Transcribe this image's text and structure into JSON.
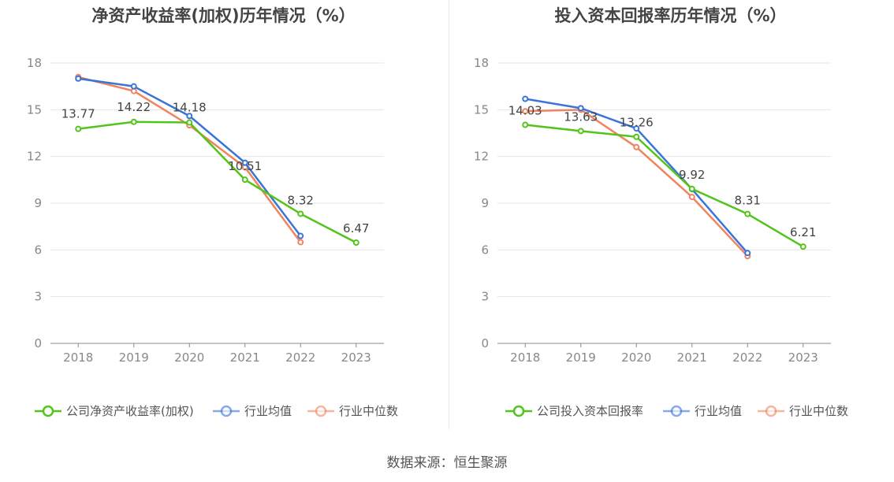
{
  "footer": {
    "source": "数据来源：恒生聚源"
  },
  "colors": {
    "company": "#52c41a",
    "avg": "#3a74d8",
    "median": "#f0845e"
  },
  "chart_data": [
    {
      "type": "line",
      "title": "净资产收益率(加权)历年情况（%）",
      "categories": [
        "2018",
        "2019",
        "2020",
        "2021",
        "2022",
        "2023"
      ],
      "ylim": [
        0,
        18
      ],
      "yticks": [
        0,
        3,
        6,
        9,
        12,
        15,
        18
      ],
      "grid": true,
      "legend_position": "bottom",
      "series": [
        {
          "name": "公司净资产收益率(加权)",
          "key": "company",
          "values": [
            13.77,
            14.22,
            14.18,
            10.51,
            8.32,
            6.47
          ],
          "labels": [
            "13.77",
            "14.22",
            "14.18",
            "10.51",
            "8.32",
            "6.47"
          ]
        },
        {
          "name": "行业均值",
          "key": "avg",
          "values": [
            17.0,
            16.5,
            14.6,
            11.6,
            6.9,
            null
          ]
        },
        {
          "name": "行业中位数",
          "key": "median",
          "values": [
            17.1,
            16.2,
            14.0,
            11.3,
            6.5,
            null
          ]
        }
      ]
    },
    {
      "type": "line",
      "title": "投入资本回报率历年情况（%）",
      "categories": [
        "2018",
        "2019",
        "2020",
        "2021",
        "2022",
        "2023"
      ],
      "ylim": [
        0,
        18
      ],
      "yticks": [
        0,
        3,
        6,
        9,
        12,
        15,
        18
      ],
      "grid": true,
      "legend_position": "bottom",
      "series": [
        {
          "name": "公司投入资本回报率",
          "key": "company",
          "values": [
            14.03,
            13.63,
            13.26,
            9.92,
            8.31,
            6.21
          ],
          "labels": [
            "14.03",
            "13.63",
            "13.26",
            "9.92",
            "8.31",
            "6.21"
          ]
        },
        {
          "name": "行业均值",
          "key": "avg",
          "values": [
            15.7,
            15.1,
            13.8,
            9.9,
            5.8,
            null
          ]
        },
        {
          "name": "行业中位数",
          "key": "median",
          "values": [
            14.9,
            15.0,
            12.6,
            9.4,
            5.6,
            null
          ]
        }
      ]
    }
  ]
}
